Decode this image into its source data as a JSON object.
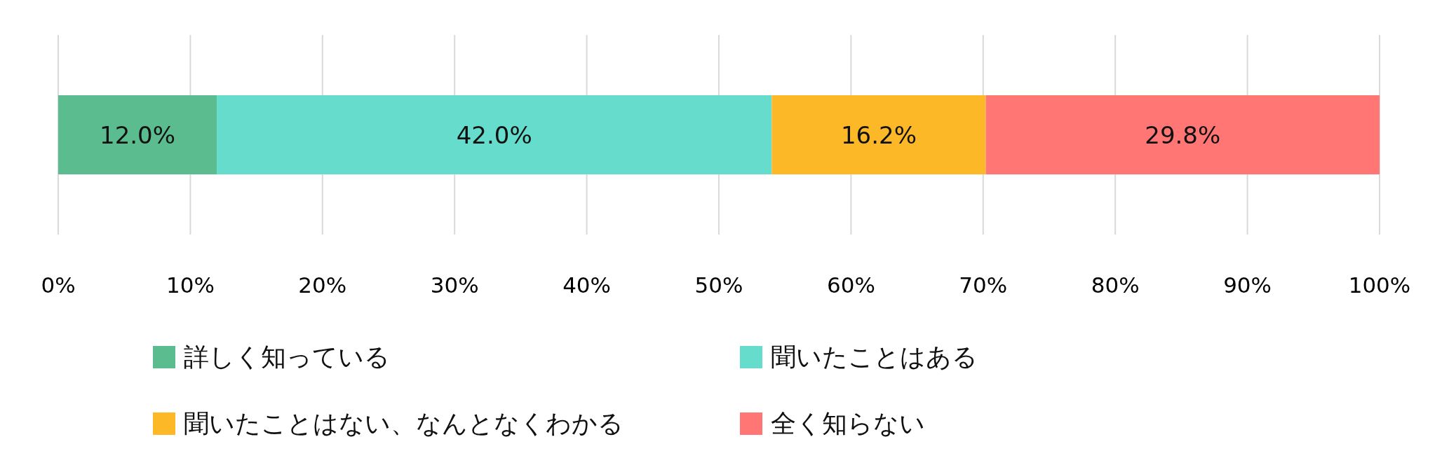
{
  "chart_data": {
    "type": "bar",
    "orientation": "horizontal",
    "stacked": true,
    "categories": [
      null
    ],
    "series": [
      {
        "name": "詳しく知っている",
        "color": "#5bbd8f",
        "values": [
          12.0
        ],
        "value_labels": [
          "12.0%"
        ]
      },
      {
        "name": "聞いたことはある",
        "color": "#66dccc",
        "values": [
          42.0
        ],
        "value_labels": [
          "42.0%"
        ]
      },
      {
        "name": "聞いたことはない、なんとなくわかる",
        "color": "#fdb827",
        "values": [
          16.2
        ],
        "value_labels": [
          "16.2%"
        ]
      },
      {
        "name": "全く知らない",
        "color": "#ff7674",
        "values": [
          29.8
        ],
        "value_labels": [
          "29.8%"
        ]
      }
    ],
    "xlim": [
      0,
      100
    ],
    "xticks": [
      {
        "value": 0,
        "label": "0%"
      },
      {
        "value": 10,
        "label": "10%"
      },
      {
        "value": 20,
        "label": "20%"
      },
      {
        "value": 30,
        "label": "30%"
      },
      {
        "value": 40,
        "label": "40%"
      },
      {
        "value": 50,
        "label": "50%"
      },
      {
        "value": 60,
        "label": "60%"
      },
      {
        "value": 70,
        "label": "70%"
      },
      {
        "value": 80,
        "label": "80%"
      },
      {
        "value": 90,
        "label": "90%"
      },
      {
        "value": 100,
        "label": "100%"
      }
    ],
    "grid": "x",
    "legend": "bottom"
  }
}
